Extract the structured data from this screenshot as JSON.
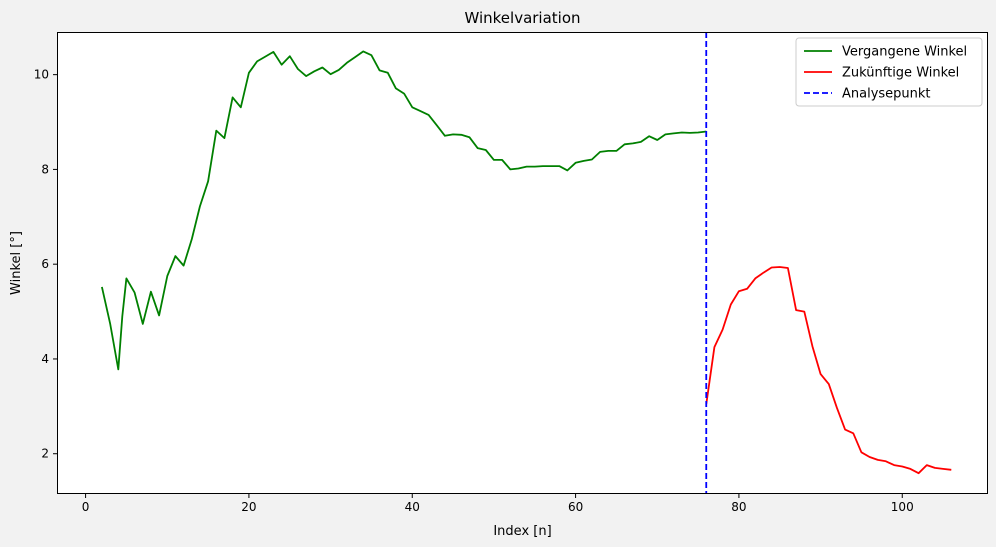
{
  "chart_data": {
    "type": "line",
    "title": "Winkelvariation",
    "xlabel": "Index [n]",
    "ylabel": "Winkel [°]",
    "xlim": [
      -3.5,
      110.5
    ],
    "ylim": [
      1.15,
      10.9
    ],
    "x_ticks": [
      0,
      20,
      40,
      60,
      80,
      100
    ],
    "y_ticks": [
      2,
      4,
      6,
      8,
      10
    ],
    "grid": false,
    "legend_position": "top-right",
    "series": [
      {
        "name": "Vergangene Winkel",
        "color": "#008000",
        "style": "solid",
        "x": [
          2,
          3,
          4,
          4.5,
          5,
          6,
          7,
          8,
          9,
          10,
          11,
          12,
          13,
          14,
          15,
          16,
          17,
          18,
          19,
          20,
          21,
          22,
          23,
          24,
          25,
          26,
          27,
          28,
          29,
          30,
          31,
          32,
          33,
          34,
          35,
          36,
          37,
          38,
          39,
          40,
          41,
          42,
          43,
          44,
          45,
          46,
          47,
          48,
          49,
          50,
          51,
          52,
          53,
          54,
          55,
          56,
          57,
          58,
          59,
          60,
          61,
          62,
          63,
          64,
          65,
          66,
          67,
          68,
          69,
          70,
          71,
          72,
          73,
          74,
          75,
          76
        ],
        "values": [
          5.52,
          4.75,
          3.78,
          4.9,
          5.7,
          5.4,
          4.74,
          5.42,
          4.92,
          5.75,
          6.17,
          5.97,
          6.53,
          7.22,
          7.75,
          8.82,
          8.66,
          9.52,
          9.31,
          10.04,
          10.28,
          10.38,
          10.48,
          10.21,
          10.39,
          10.12,
          9.97,
          10.07,
          10.15,
          10.01,
          10.1,
          10.25,
          10.37,
          10.49,
          10.41,
          10.09,
          10.04,
          9.71,
          9.6,
          9.31,
          9.23,
          9.15,
          8.93,
          8.71,
          8.74,
          8.73,
          8.68,
          8.45,
          8.41,
          8.2,
          8.2,
          8.0,
          8.02,
          8.06,
          8.06,
          8.07,
          8.07,
          8.07,
          7.98,
          8.14,
          8.18,
          8.21,
          8.37,
          8.39,
          8.39,
          8.53,
          8.55,
          8.58,
          8.7,
          8.62,
          8.74,
          8.76,
          8.78,
          8.77,
          8.78,
          8.8
        ]
      },
      {
        "name": "Zukünftige Winkel",
        "color": "#ff0000",
        "style": "solid",
        "x": [
          76,
          77,
          78,
          79,
          80,
          81,
          82,
          83,
          84,
          85,
          86,
          87,
          88,
          89,
          90,
          91,
          92,
          93,
          94,
          95,
          96,
          97,
          98,
          99,
          100,
          101,
          102,
          103,
          104,
          105,
          106
        ],
        "values": [
          3.05,
          4.25,
          4.62,
          5.15,
          5.43,
          5.48,
          5.7,
          5.82,
          5.93,
          5.94,
          5.92,
          5.03,
          5.0,
          4.27,
          3.68,
          3.47,
          2.97,
          2.51,
          2.43,
          2.03,
          1.93,
          1.87,
          1.84,
          1.76,
          1.73,
          1.68,
          1.59,
          1.76,
          1.7,
          1.68,
          1.66
        ]
      },
      {
        "name": "Analysepunkt",
        "color": "#0000ff",
        "style": "dashed",
        "vline_x": 76
      }
    ]
  }
}
